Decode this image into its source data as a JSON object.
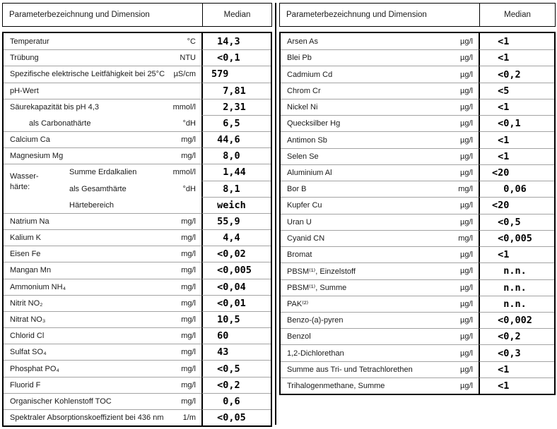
{
  "colors": {
    "background": "#ffffff",
    "outer_border": "#000000",
    "grid_line": "#a3a3a3",
    "text": "#1a1a1a"
  },
  "tables": [
    {
      "id": "left",
      "header": {
        "param_label": "Parameterbezeichnung und Dimension",
        "median_label": "Median"
      },
      "group_label": {
        "line1": "Wasser-",
        "line2": "härte:"
      },
      "rows": [
        {
          "label": "Temperatur",
          "unit": "°C",
          "median": " 14,3"
        },
        {
          "label": "Trübung",
          "unit": "NTU",
          "median": " <0,1"
        },
        {
          "label": "Spezifische elektrische Leitfähigkeit bei 25°C",
          "unit": "µS/cm",
          "median": "579"
        },
        {
          "label": "pH-Wert",
          "unit": "",
          "median": "  7,81"
        },
        {
          "label": "Säurekapazität bis pH 4,3",
          "unit": "mmol/l",
          "median": "  2,31"
        },
        {
          "label": "als Carbonathärte",
          "unit": "°dH",
          "median": "  6,5",
          "indent": 1,
          "cont": true
        },
        {
          "label": "Calcium Ca",
          "unit": "mg/l",
          "median": " 44,6"
        },
        {
          "label": "Magnesium Mg",
          "unit": "mg/l",
          "median": "  8,0"
        },
        {
          "label": "Summe Erdalkalien",
          "unit": "mmol/l",
          "median": "  1,44",
          "indent": 2
        },
        {
          "label": "als Gesamthärte",
          "unit": "°dH",
          "median": "  8,1",
          "indent": 2,
          "cont": true
        },
        {
          "label": "Härtebereich",
          "unit": "",
          "median": " weich",
          "indent": 2,
          "cont": true
        },
        {
          "label": "Natrium Na",
          "unit": "mg/l",
          "median": " 55,9"
        },
        {
          "label": "Kalium K",
          "unit": "mg/l",
          "median": "  4,4"
        },
        {
          "label": "Eisen Fe",
          "unit": "mg/l",
          "median": " <0,02"
        },
        {
          "label": "Mangan Mn",
          "unit": "mg/l",
          "median": " <0,005"
        },
        {
          "label": "Ammonium NH₄",
          "unit": "mg/l",
          "median": " <0,04"
        },
        {
          "label": "Nitrit NO₂",
          "unit": "mg/l",
          "median": " <0,01"
        },
        {
          "label": "Nitrat NO₃",
          "unit": "mg/l",
          "median": " 10,5"
        },
        {
          "label": "Chlorid Cl",
          "unit": "mg/l",
          "median": " 60"
        },
        {
          "label": "Sulfat SO₄",
          "unit": "mg/l",
          "median": " 43"
        },
        {
          "label": "Phosphat PO₄",
          "unit": "mg/l",
          "median": " <0,5"
        },
        {
          "label": "Fluorid F",
          "unit": "mg/l",
          "median": " <0,2"
        },
        {
          "label": "Organischer Kohlenstoff TOC",
          "unit": "mg/l",
          "median": "  0,6"
        },
        {
          "label": "Spektraler Absorptionskoeffizient bei 436 nm",
          "unit": "1/m",
          "median": " <0,05"
        }
      ]
    },
    {
      "id": "right",
      "header": {
        "param_label": "Parameterbezeichnung und Dimension",
        "median_label": "Median"
      },
      "rows": [
        {
          "label": "Arsen As",
          "unit": "µg/l",
          "median": " <1"
        },
        {
          "label": "Blei Pb",
          "unit": "µg/l",
          "median": " <1"
        },
        {
          "label": "Cadmium Cd",
          "unit": "µg/l",
          "median": " <0,2"
        },
        {
          "label": "Chrom Cr",
          "unit": "µg/l",
          "median": " <5"
        },
        {
          "label": "Nickel Ni",
          "unit": "µg/l",
          "median": " <1"
        },
        {
          "label": "Quecksilber Hg",
          "unit": "µg/l",
          "median": " <0,1"
        },
        {
          "label": "Antimon Sb",
          "unit": "µg/l",
          "median": " <1"
        },
        {
          "label": "Selen Se",
          "unit": "µg/l",
          "median": " <1"
        },
        {
          "label": "Aluminium Al",
          "unit": "µg/l",
          "median": "<20"
        },
        {
          "label": "Bor B",
          "unit": "mg/l",
          "median": "  0,06"
        },
        {
          "label": "Kupfer Cu",
          "unit": "µg/l",
          "median": "<20"
        },
        {
          "label": "Uran U",
          "unit": "µg/l",
          "median": " <0,5"
        },
        {
          "label": "Cyanid CN",
          "unit": "mg/l",
          "median": " <0,005"
        },
        {
          "label": "Bromat",
          "unit": "µg/l",
          "median": " <1"
        },
        {
          "label": "PBSM⁽¹⁾, Einzelstoff",
          "unit": "µg/l",
          "median": "  n.n."
        },
        {
          "label": "PBSM⁽¹⁾, Summe",
          "unit": "µg/l",
          "median": "  n.n."
        },
        {
          "label": "PAK⁽²⁾",
          "unit": "µg/l",
          "median": "  n.n."
        },
        {
          "label": "Benzo-(a)-pyren",
          "unit": "µg/l",
          "median": " <0,002"
        },
        {
          "label": "Benzol",
          "unit": "µg/l",
          "median": " <0,2"
        },
        {
          "label": "1,2-Dichlorethan",
          "unit": "µg/l",
          "median": " <0,3"
        },
        {
          "label": "Summe aus Tri- und Tetrachlorethen",
          "unit": "µg/l",
          "median": " <1"
        },
        {
          "label": "Trihalogenmethane, Summe",
          "unit": "µg/l",
          "median": " <1"
        }
      ]
    }
  ]
}
